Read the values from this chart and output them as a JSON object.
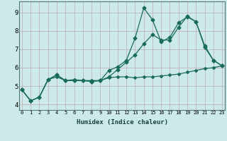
{
  "xlabel": "Humidex (Indice chaleur)",
  "background_color": "#cceaea",
  "grid_color": "#c0aaaa",
  "line_color": "#1a6b5a",
  "x_ticks": [
    0,
    1,
    2,
    3,
    4,
    5,
    6,
    7,
    8,
    9,
    10,
    11,
    12,
    13,
    14,
    15,
    16,
    17,
    18,
    19,
    20,
    21,
    22,
    23
  ],
  "y_ticks": [
    4,
    5,
    6,
    7,
    8,
    9
  ],
  "xlim": [
    -0.3,
    23.3
  ],
  "ylim": [
    3.7,
    9.6
  ],
  "series": [
    {
      "x": [
        0,
        1,
        2,
        3,
        4,
        5,
        6,
        7,
        8,
        9,
        10,
        11,
        12,
        13,
        14,
        15,
        16,
        17,
        18,
        19,
        20,
        21,
        22,
        23
      ],
      "y": [
        4.8,
        4.2,
        4.4,
        5.35,
        5.5,
        5.3,
        5.35,
        5.3,
        5.3,
        5.3,
        5.45,
        5.5,
        5.5,
        5.45,
        5.5,
        5.5,
        5.55,
        5.6,
        5.65,
        5.75,
        5.85,
        5.95,
        6.0,
        6.1
      ],
      "marker": "D",
      "markersize": 2.0,
      "linewidth": 0.9
    },
    {
      "x": [
        0,
        1,
        2,
        3,
        4,
        5,
        6,
        7,
        8,
        9,
        10,
        11,
        12,
        13,
        14,
        15,
        16,
        17,
        18,
        19,
        20,
        21,
        22,
        23
      ],
      "y": [
        4.8,
        4.2,
        4.4,
        5.35,
        5.6,
        5.3,
        5.3,
        5.3,
        5.25,
        5.3,
        5.5,
        5.9,
        6.3,
        6.7,
        7.3,
        7.8,
        7.5,
        7.5,
        8.2,
        8.8,
        8.5,
        7.1,
        6.4,
        6.1
      ],
      "marker": "D",
      "markersize": 2.5,
      "linewidth": 0.9
    },
    {
      "x": [
        0,
        1,
        2,
        3,
        4,
        5,
        6,
        7,
        8,
        9,
        10,
        11,
        12,
        13,
        14,
        15,
        16,
        17,
        18,
        19,
        20,
        21,
        22,
        23
      ],
      "y": [
        4.8,
        4.2,
        4.4,
        5.35,
        5.6,
        5.3,
        5.3,
        5.3,
        5.25,
        5.3,
        5.85,
        6.05,
        6.4,
        7.6,
        9.25,
        8.6,
        7.4,
        7.65,
        8.45,
        8.75,
        8.5,
        7.2,
        6.4,
        6.1
      ],
      "marker": "D",
      "markersize": 2.5,
      "linewidth": 0.9
    }
  ]
}
